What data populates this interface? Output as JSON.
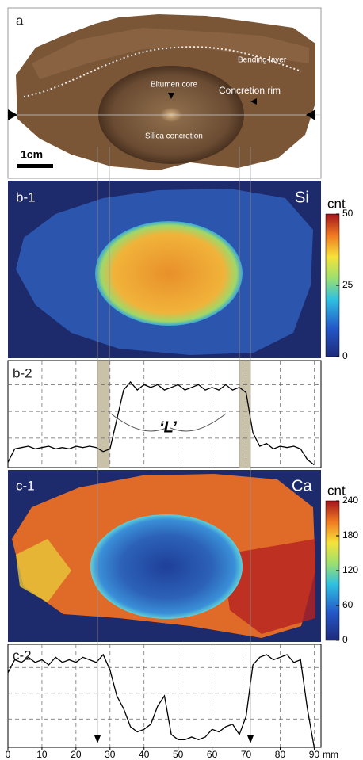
{
  "chart_data": [
    {
      "type": "image",
      "label": "a",
      "annotations": [
        "Bending layer",
        "Bitumen core",
        "Concretion rim",
        "Silica concretion"
      ],
      "scale_bar": "1cm"
    },
    {
      "type": "heatmap",
      "label": "b-1",
      "element": "Si",
      "colorbar_label": "cnt",
      "clim": [
        0,
        50
      ],
      "cticks": [
        0,
        25,
        50
      ]
    },
    {
      "type": "line",
      "label": "b-2",
      "annotation": "‘L’",
      "color": "#000000",
      "x": [
        0,
        2,
        4,
        6,
        8,
        10,
        12,
        14,
        16,
        18,
        20,
        22,
        24,
        26,
        28,
        30,
        32,
        34,
        36,
        38,
        40,
        42,
        44,
        46,
        48,
        50,
        52,
        54,
        56,
        58,
        60,
        62,
        64,
        66,
        68,
        70,
        72,
        74,
        76,
        78,
        80,
        82,
        84,
        86,
        88,
        90
      ],
      "values": [
        0.2,
        0.7,
        0.75,
        0.8,
        0.7,
        0.75,
        0.8,
        0.7,
        0.75,
        0.7,
        0.8,
        0.75,
        0.8,
        0.75,
        0.6,
        0.7,
        1.8,
        2.9,
        3.2,
        2.9,
        3.1,
        3.0,
        3.1,
        2.9,
        3.0,
        3.1,
        2.9,
        3.0,
        3.1,
        2.9,
        3.0,
        2.9,
        3.1,
        2.9,
        3.0,
        2.8,
        1.3,
        0.8,
        0.9,
        0.7,
        0.8,
        0.75,
        0.8,
        0.7,
        0.3,
        0.1
      ],
      "xlim": [
        0,
        92
      ],
      "ylim": [
        0,
        4
      ],
      "xgrid": [
        10,
        20,
        30,
        40,
        50,
        60,
        70,
        80,
        90
      ],
      "ygrid": [
        1.1,
        2.1,
        3.1
      ]
    },
    {
      "type": "heatmap",
      "label": "c-1",
      "element": "Ca",
      "colorbar_label": "cnt",
      "clim": [
        0,
        240
      ],
      "cticks": [
        0,
        60,
        120,
        180,
        240
      ]
    },
    {
      "type": "line",
      "label": "c-2",
      "color": "#000000",
      "xlabel": "mm",
      "x": [
        0,
        2,
        4,
        6,
        8,
        10,
        12,
        14,
        16,
        18,
        20,
        22,
        24,
        26,
        28,
        30,
        32,
        34,
        36,
        38,
        40,
        42,
        44,
        46,
        48,
        50,
        52,
        54,
        56,
        58,
        60,
        62,
        64,
        66,
        68,
        70,
        72,
        74,
        76,
        78,
        80,
        82,
        84,
        86,
        88,
        90
      ],
      "values": [
        2.9,
        3.4,
        3.3,
        3.5,
        3.3,
        3.4,
        3.2,
        3.5,
        3.3,
        3.4,
        3.3,
        3.5,
        3.4,
        3.3,
        3.6,
        3.0,
        2.0,
        1.5,
        0.8,
        0.6,
        0.7,
        0.9,
        1.6,
        2.0,
        0.5,
        0.3,
        0.3,
        0.4,
        0.3,
        0.4,
        0.7,
        0.6,
        0.8,
        0.9,
        0.5,
        1.2,
        3.2,
        3.5,
        3.6,
        3.4,
        3.5,
        3.6,
        3.3,
        3.4,
        1.5,
        0
      ],
      "xlim": [
        0,
        92
      ],
      "ylim": [
        0,
        4
      ],
      "xticks": [
        0,
        10,
        20,
        30,
        40,
        50,
        60,
        70,
        80,
        90
      ],
      "ygrid": [
        1.1,
        2.1,
        3.1
      ]
    }
  ]
}
